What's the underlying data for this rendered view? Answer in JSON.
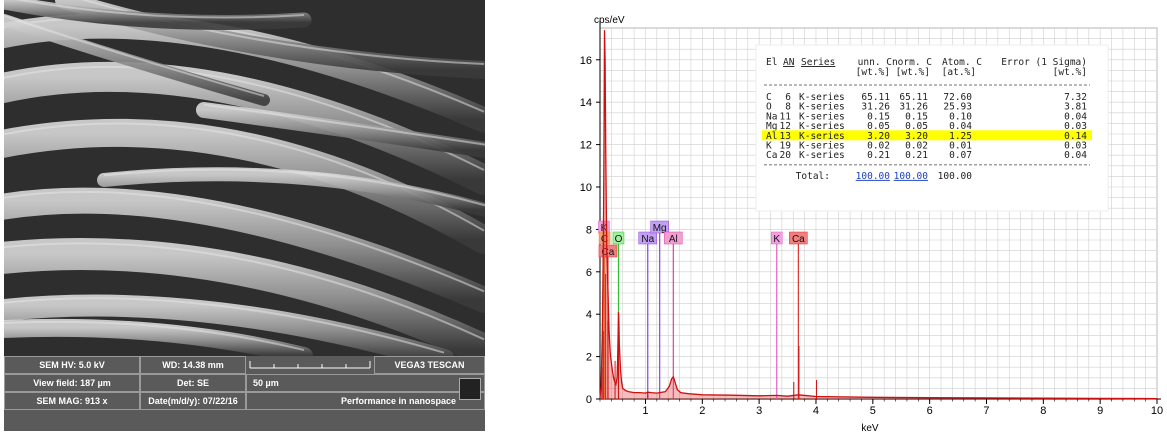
{
  "sem": {
    "hv": "SEM HV: 5.0 kV",
    "wd": "WD: 14.38 mm",
    "brand": "VEGA3 TESCAN",
    "view_field": "View field: 187 µm",
    "det": "Det: SE",
    "scale": "50 µm",
    "mag": "SEM MAG: 913 x",
    "date": "Date(m/d/y): 07/22/16",
    "slogan": "Performance in nanospace"
  },
  "chart_data": {
    "type": "line",
    "ylabel": "cps/eV",
    "xlabel": "keV",
    "xlim": [
      0.2,
      10
    ],
    "ylim": [
      0,
      17.5
    ],
    "xticks": [
      1,
      2,
      3,
      4,
      5,
      6,
      7,
      8,
      9,
      10
    ],
    "yticks": [
      0,
      2,
      4,
      6,
      8,
      10,
      12,
      14,
      16
    ],
    "grid": true,
    "spectrum": [
      [
        0.2,
        0.05
      ],
      [
        0.22,
        0.6
      ],
      [
        0.24,
        3.0
      ],
      [
        0.26,
        7.5
      ],
      [
        0.27,
        12.0
      ],
      [
        0.28,
        17.4
      ],
      [
        0.29,
        16.0
      ],
      [
        0.3,
        12.0
      ],
      [
        0.31,
        9.0
      ],
      [
        0.32,
        7.0
      ],
      [
        0.34,
        5.0
      ],
      [
        0.36,
        3.2
      ],
      [
        0.38,
        2.2
      ],
      [
        0.4,
        1.7
      ],
      [
        0.42,
        1.3
      ],
      [
        0.44,
        1.0
      ],
      [
        0.46,
        0.8
      ],
      [
        0.48,
        0.7
      ],
      [
        0.5,
        1.0
      ],
      [
        0.51,
        1.8
      ],
      [
        0.52,
        3.2
      ],
      [
        0.525,
        4.1
      ],
      [
        0.53,
        3.8
      ],
      [
        0.54,
        2.6
      ],
      [
        0.56,
        1.4
      ],
      [
        0.58,
        0.8
      ],
      [
        0.6,
        0.5
      ],
      [
        0.65,
        0.4
      ],
      [
        0.7,
        0.35
      ],
      [
        0.8,
        0.3
      ],
      [
        0.9,
        0.3
      ],
      [
        1.0,
        0.28
      ],
      [
        1.04,
        0.32
      ],
      [
        1.1,
        0.3
      ],
      [
        1.2,
        0.28
      ],
      [
        1.25,
        0.3
      ],
      [
        1.35,
        0.35
      ],
      [
        1.42,
        0.6
      ],
      [
        1.46,
        0.95
      ],
      [
        1.49,
        1.05
      ],
      [
        1.52,
        0.8
      ],
      [
        1.56,
        0.45
      ],
      [
        1.62,
        0.3
      ],
      [
        1.75,
        0.25
      ],
      [
        2.0,
        0.2
      ],
      [
        2.5,
        0.18
      ],
      [
        3.0,
        0.15
      ],
      [
        3.31,
        0.17
      ],
      [
        3.5,
        0.13
      ],
      [
        3.69,
        0.2
      ],
      [
        4.0,
        0.12
      ],
      [
        5.0,
        0.08
      ],
      [
        6.0,
        0.06
      ],
      [
        7.0,
        0.05
      ],
      [
        8.0,
        0.04
      ],
      [
        9.0,
        0.03
      ],
      [
        10.0,
        0.02
      ]
    ],
    "spikes": [
      [
        0.233,
        1.5
      ],
      [
        0.255,
        3.2
      ],
      [
        0.3,
        5.9
      ],
      [
        0.34,
        3.7
      ],
      [
        0.465,
        1.8
      ],
      [
        0.525,
        3.0
      ],
      [
        1.04,
        0.3
      ],
      [
        3.61,
        0.8
      ],
      [
        3.7,
        2.5
      ],
      [
        4.01,
        0.9
      ]
    ],
    "markers": [
      {
        "label": "K",
        "x": 0.27,
        "color": "#e060c0",
        "bg": "#f0a0e0",
        "row": 1
      },
      {
        "label": "C",
        "x": 0.28,
        "color": "#f08030",
        "bg": "#f4a070",
        "row": 2
      },
      {
        "label": "Ca",
        "x": 0.34,
        "color": "#e03030",
        "bg": "#f08080",
        "row": 3
      },
      {
        "label": "O",
        "x": 0.525,
        "color": "#30c030",
        "bg": "#a0f0a0",
        "row": 2
      },
      {
        "label": "Na",
        "x": 1.04,
        "color": "#9040e0",
        "bg": "#c0a0f0",
        "row": 2
      },
      {
        "label": "Mg",
        "x": 1.25,
        "color": "#9040e0",
        "bg": "#c0a0f0",
        "row": 1
      },
      {
        "label": "Al",
        "x": 1.49,
        "color": "#e040a0",
        "bg": "#f0a0d0",
        "row": 2
      },
      {
        "label": "K",
        "x": 3.31,
        "color": "#e060c0",
        "bg": "#f0a0e0",
        "row": 2
      },
      {
        "label": "Ca",
        "x": 3.69,
        "color": "#e03030",
        "bg": "#f08080",
        "row": 2
      }
    ],
    "table": {
      "header1": [
        "El",
        "AN",
        "Series",
        "unn. C",
        "norm. C",
        "Atom. C",
        "Error (1 Sigma)"
      ],
      "header2": [
        "[wt.%]",
        "[wt.%]",
        "[at.%]",
        "[wt.%]"
      ],
      "rows": [
        [
          "C",
          "6",
          "K-series",
          "65.11",
          "65.11",
          "72.60",
          "7.32"
        ],
        [
          "O",
          "8",
          "K-series",
          "31.26",
          "31.26",
          "25.93",
          "3.81"
        ],
        [
          "Na",
          "11",
          "K-series",
          "0.15",
          "0.15",
          "0.10",
          "0.04"
        ],
        [
          "Mg",
          "12",
          "K-series",
          "0.05",
          "0.05",
          "0.04",
          "0.03"
        ],
        [
          "Al",
          "13",
          "K-series",
          "3.20",
          "3.20",
          "1.25",
          "0.14"
        ],
        [
          "K",
          "19",
          "K-series",
          "0.02",
          "0.02",
          "0.01",
          "0.03"
        ],
        [
          "Ca",
          "20",
          "K-series",
          "0.21",
          "0.21",
          "0.07",
          "0.04"
        ]
      ],
      "highlight_row": 4,
      "total_label": "Total:",
      "totals": [
        "100.00",
        "100.00",
        "100.00"
      ]
    },
    "colors": {
      "spectrum": "#cc1111",
      "highlight": "#ffff00",
      "grid": "#cfcfcf"
    }
  }
}
